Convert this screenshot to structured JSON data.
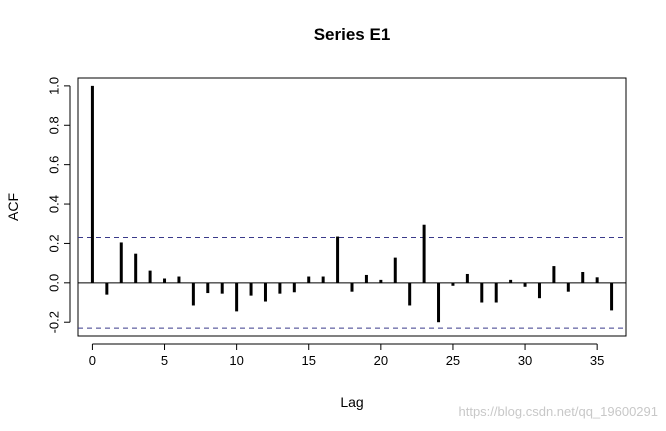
{
  "chart_data": {
    "type": "bar",
    "title": "Series  E1",
    "xlabel": "Lag",
    "ylabel": "ACF",
    "xlim": [
      -1,
      37
    ],
    "ylim": [
      -0.27,
      1.04
    ],
    "x_ticks": [
      0,
      5,
      10,
      15,
      20,
      25,
      30,
      35
    ],
    "y_ticks": [
      -0.2,
      0.0,
      0.2,
      0.4,
      0.6,
      0.8,
      1.0
    ],
    "y_tick_labels": [
      "-0.2",
      "0.0",
      "0.2",
      "0.4",
      "0.6",
      "0.8",
      "1.0"
    ],
    "x": [
      0,
      1,
      2,
      3,
      4,
      5,
      6,
      7,
      8,
      9,
      10,
      11,
      12,
      13,
      14,
      15,
      16,
      17,
      18,
      19,
      20,
      21,
      22,
      23,
      24,
      25,
      26,
      27,
      28,
      29,
      30,
      31,
      32,
      33,
      34,
      35,
      36
    ],
    "values": [
      1.0,
      -0.06,
      0.205,
      0.148,
      0.062,
      0.022,
      0.032,
      -0.115,
      -0.052,
      -0.055,
      -0.145,
      -0.065,
      -0.095,
      -0.055,
      -0.048,
      0.032,
      0.032,
      0.235,
      -0.045,
      0.04,
      0.015,
      0.128,
      -0.115,
      0.295,
      -0.2,
      -0.015,
      0.045,
      -0.1,
      -0.1,
      0.015,
      -0.02,
      -0.078,
      0.085,
      -0.045,
      0.055,
      0.028,
      -0.14
    ],
    "confidence_bounds": [
      0.23,
      -0.23
    ],
    "confidence_style": "dashed",
    "bar_color": "#000000",
    "confidence_color": "#3a3a8a",
    "grid": false
  },
  "watermark": "https://blog.csdn.net/qq_19600291"
}
